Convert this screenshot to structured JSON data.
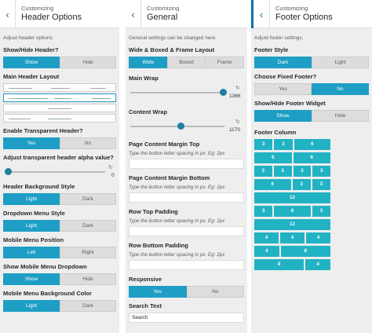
{
  "colors": {
    "accent": "#1e9ec4",
    "panel_bg": "#eeeeee",
    "header_bg": "#ffffff",
    "column_cell": "#21b2c4"
  },
  "icons": {
    "back": "chevron-left-icon",
    "reset": "undo-icon"
  },
  "header_options": {
    "breadcrumb": "Customizing",
    "title": "Header Options",
    "description": "Adjust header options",
    "show_hide": {
      "label": "Show/Hide Header?",
      "options": [
        "Show",
        "Hide"
      ],
      "selected": "Show"
    },
    "main_layout": {
      "label": "Main Header Layout"
    },
    "transparent": {
      "label": "Enable Transparent Header?",
      "options": [
        "Yes",
        "No"
      ],
      "selected": "Yes"
    },
    "alpha": {
      "label": "Adjust transparent header alpha value?",
      "value": "0",
      "fraction": 0.0
    },
    "bg_style": {
      "label": "Header Background Style",
      "options": [
        "Light",
        "Dark"
      ],
      "selected": "Light"
    },
    "dropdown_style": {
      "label": "Dropdown Menu Style",
      "options": [
        "Light",
        "Dark"
      ],
      "selected": "Light"
    },
    "mobile_position": {
      "label": "Mobile Menu Position",
      "options": [
        "Left",
        "Right"
      ],
      "selected": "Left"
    },
    "mobile_dropdown": {
      "label": "Show Mobile Menu Dropdown",
      "options": [
        "Show",
        "Hide"
      ],
      "selected": "Show"
    },
    "mobile_bg": {
      "label": "Mobile Menu Background Color",
      "options": [
        "Light",
        "Dark"
      ],
      "selected": "Light"
    }
  },
  "general": {
    "breadcrumb": "Customizing",
    "title": "General",
    "description": "General settings can be changed here.",
    "layout": {
      "label": "Wide & Boxed & Frame Layout",
      "options": [
        "Wide",
        "Boxed",
        "Frame"
      ],
      "selected": "Wide"
    },
    "main_wrap": {
      "label": "Main Wrap",
      "value": "1366",
      "fraction": 0.97
    },
    "content_wrap": {
      "label": "Content Wrap",
      "value": "1170",
      "fraction": 0.5
    },
    "margin_top": {
      "label": "Page Content Margin Top",
      "hint": "Type the button letter spacing in px. Eg: 2px",
      "value": ""
    },
    "margin_bottom": {
      "label": "Page Content Margin Bottom",
      "hint": "Type the button letter spacing in px. Eg: 2px",
      "value": ""
    },
    "row_top": {
      "label": "Row Top Padding",
      "hint": "Type the button letter spacing in px. Eg: 2px",
      "value": ""
    },
    "row_bottom": {
      "label": "Row Bottom Padding",
      "hint": "Type the button letter spacing in px. Eg: 2px",
      "value": ""
    },
    "responsive": {
      "label": "Responsive",
      "options": [
        "Yes",
        "No"
      ],
      "selected": "Yes"
    },
    "search_text": {
      "label": "Search Text",
      "value": "Search"
    }
  },
  "footer": {
    "breadcrumb": "Customizing",
    "title": "Footer Options",
    "description": "Adjust footer settings.",
    "style": {
      "label": "Footer Style",
      "options": [
        "Dark",
        "Light"
      ],
      "selected": "Dark"
    },
    "fixed": {
      "label": "Choose Fixed Footer?",
      "options": [
        "Yes",
        "No"
      ],
      "selected": "No"
    },
    "widget": {
      "label": "Show/Hide Footer Widget",
      "options": [
        "Show",
        "Hide"
      ],
      "selected": "Show"
    },
    "column": {
      "label": "Footer Column",
      "layouts": [
        [
          [
            "3",
            3
          ],
          [
            "3",
            3
          ],
          [
            "6",
            6
          ]
        ],
        [
          [
            "6",
            6
          ],
          [
            "6",
            6
          ]
        ],
        [
          [
            "3",
            3
          ],
          [
            "3",
            3
          ],
          [
            "3",
            3
          ],
          [
            "3",
            3
          ]
        ],
        [
          [
            "6",
            6
          ],
          [
            "3",
            3
          ],
          [
            "3",
            3
          ]
        ],
        [
          [
            "12",
            12
          ]
        ],
        [
          [
            "3",
            3
          ],
          [
            "6",
            6
          ],
          [
            "3",
            3
          ]
        ],
        [
          [
            "12",
            12
          ]
        ],
        [
          [
            "4",
            4
          ],
          [
            "4",
            4
          ],
          [
            "4",
            4
          ]
        ],
        [
          [
            "4",
            4
          ],
          [
            "8",
            8
          ]
        ],
        [
          [
            "8",
            8
          ],
          [
            "4",
            4
          ]
        ]
      ]
    }
  }
}
